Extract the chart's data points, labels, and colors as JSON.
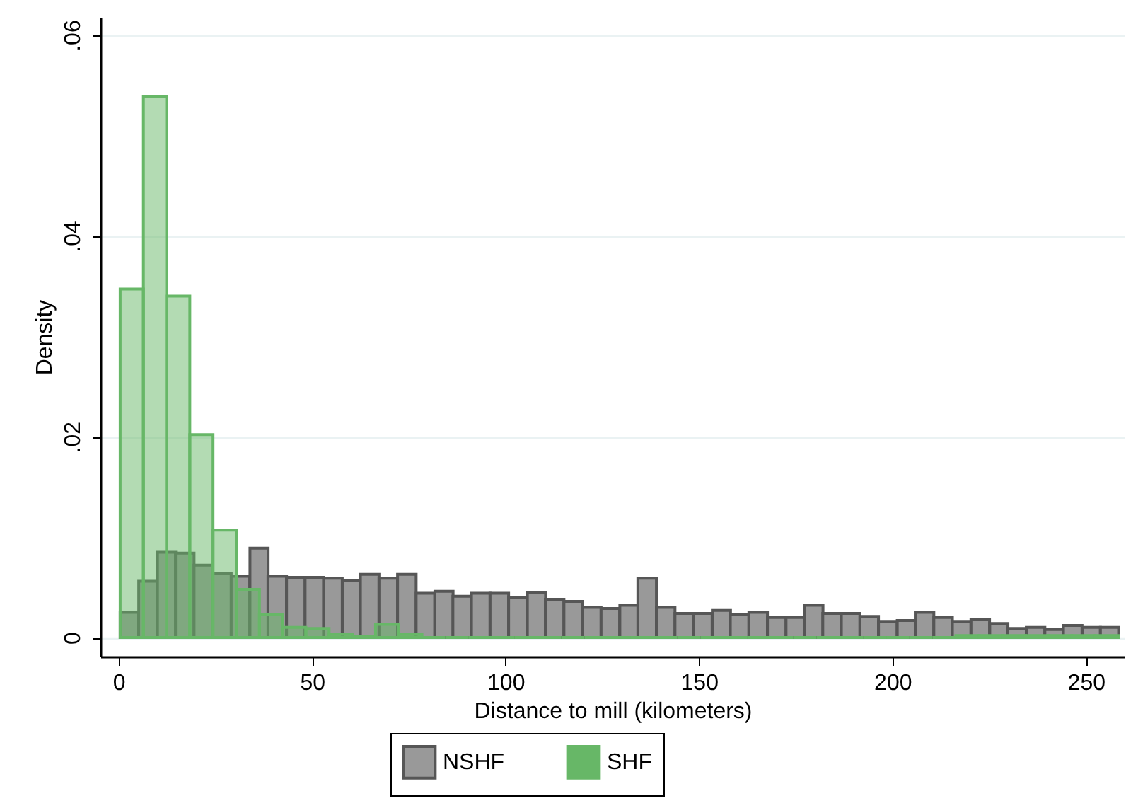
{
  "chart_data": {
    "type": "bar",
    "xlabel": "Distance to mill (kilometers)",
    "ylabel": "Density",
    "xlim": [
      -4.7,
      260
    ],
    "ylim": [
      -0.0019,
      0.0618
    ],
    "xticks": [
      0,
      50,
      100,
      150,
      200,
      250
    ],
    "yticks": [
      {
        "value": 0,
        "label": "0"
      },
      {
        "value": 0.02,
        "label": ".02"
      },
      {
        "value": 0.04,
        "label": ".04"
      },
      {
        "value": 0.06,
        "label": ".06"
      }
    ],
    "grid": "y",
    "legend": "bottom",
    "series": [
      {
        "name": "NSHF",
        "color": "#999999",
        "x": [
          2.8,
          7.6,
          12.4,
          17.1,
          21.9,
          26.7,
          31.5,
          36.3,
          41,
          45.8,
          50.6,
          55.4,
          60.2,
          64.9,
          69.7,
          74.5,
          79.3,
          84.1,
          88.8,
          93.6,
          98.4,
          103.2,
          108,
          112.7,
          117.5,
          122.3,
          127.1,
          131.9,
          136.6,
          141.4,
          146.2,
          151,
          155.8,
          160.5,
          165.3,
          170.1,
          174.9,
          179.7,
          184.4,
          189.2,
          194,
          198.8,
          203.6,
          208.3,
          213.1,
          217.9,
          222.7,
          227.5,
          232.2,
          237,
          241.8,
          246.6,
          251.4,
          256.1
        ],
        "values": [
          0.0025,
          0.0056,
          0.0085,
          0.0084,
          0.0072,
          0.0064,
          0.0061,
          0.0089,
          0.0061,
          0.006,
          0.006,
          0.0059,
          0.0057,
          0.0063,
          0.0059,
          0.0063,
          0.0044,
          0.0046,
          0.0041,
          0.0044,
          0.0044,
          0.004,
          0.0045,
          0.0038,
          0.0036,
          0.003,
          0.0029,
          0.0032,
          0.0059,
          0.003,
          0.0024,
          0.0024,
          0.0027,
          0.0023,
          0.0025,
          0.002,
          0.002,
          0.0032,
          0.0024,
          0.0024,
          0.0021,
          0.0016,
          0.0017,
          0.0025,
          0.002,
          0.0016,
          0.0018,
          0.0014,
          0.0009,
          0.001,
          0.0008,
          0.0012,
          0.001,
          0.001
        ]
      },
      {
        "name": "SHF",
        "color": "#67b767",
        "x": [
          3.4,
          9.4,
          15.4,
          21.4,
          27.4,
          33.4,
          39.4,
          45.4,
          51.4,
          57.4,
          63.4,
          69.4,
          75.4,
          81.4,
          87.4,
          93.4,
          99.4,
          105.4,
          111.4,
          117.4,
          123.4,
          129.4,
          135.4,
          141.4,
          147.4,
          153.4,
          159.4,
          165.4,
          171.4,
          177.4,
          183.4,
          189.4,
          195.4,
          201.4,
          207.4,
          213.4,
          219.4,
          225.4,
          231.4,
          237.4,
          243.4,
          249.4,
          255.4
        ],
        "values": [
          0.0347,
          0.0539,
          0.034,
          0.0202,
          0.0107,
          0.0048,
          0.0023,
          0.001,
          0.0009,
          0.0003,
          0.0001,
          0.0013,
          0.0003,
          0,
          0,
          0,
          0,
          0,
          0,
          0,
          0,
          0,
          0,
          0,
          0,
          0,
          0,
          0,
          0,
          0,
          0,
          0,
          0,
          0,
          0,
          0,
          0.0002,
          0.0002,
          0.0002,
          0.0002,
          0.0002,
          0.0002,
          0.0002
        ]
      }
    ]
  }
}
